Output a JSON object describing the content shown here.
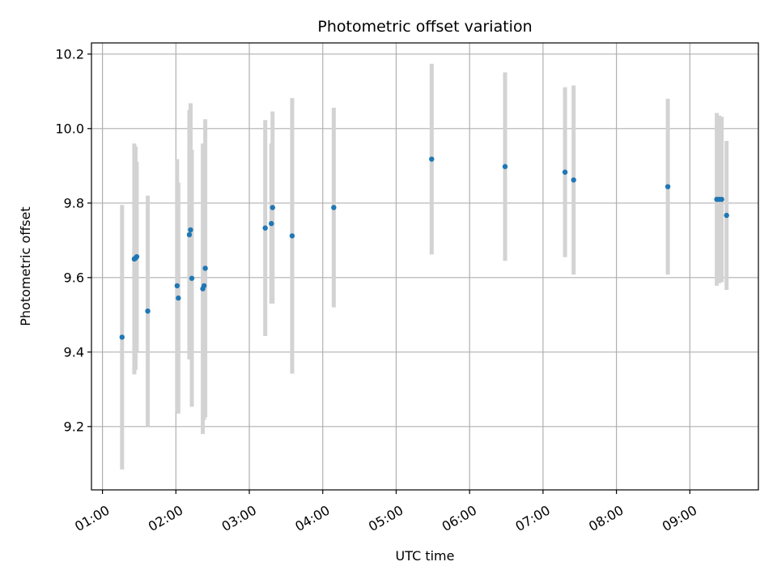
{
  "chart_data": {
    "type": "scatter",
    "title": "Photometric offset variation",
    "xlabel": "UTC time",
    "ylabel": "Photometric offset",
    "x_tick_labels": [
      "01:00",
      "02:00",
      "03:00",
      "04:00",
      "05:00",
      "06:00",
      "07:00",
      "08:00",
      "09:00"
    ],
    "y_tick_labels": [
      "9.2",
      "9.4",
      "9.6",
      "9.8",
      "10.0",
      "10.2"
    ],
    "x_ticks": [
      "01:00",
      "02:00",
      "03:00",
      "04:00",
      "05:00",
      "06:00",
      "07:00",
      "08:00",
      "09:00"
    ],
    "y_ticks": [
      9.2,
      9.4,
      9.6,
      9.8,
      10.0,
      10.2
    ],
    "xlim": [
      "00:51",
      "09:56"
    ],
    "ylim": [
      9.03,
      10.23
    ],
    "grid": true,
    "point_color": "#1f77b4",
    "errorbar_color": "#d3d3d3",
    "points": [
      {
        "x": "01:16",
        "y": 9.44,
        "err": 0.355
      },
      {
        "x": "01:26",
        "y": 9.65,
        "err": 0.31
      },
      {
        "x": "01:27",
        "y": 9.652,
        "err": 0.3
      },
      {
        "x": "01:28",
        "y": 9.656,
        "err": 0.255
      },
      {
        "x": "01:37",
        "y": 9.51,
        "err": 0.31
      },
      {
        "x": "02:01",
        "y": 9.578,
        "err": 0.34
      },
      {
        "x": "02:02",
        "y": 9.545,
        "err": 0.31
      },
      {
        "x": "02:11",
        "y": 9.715,
        "err": 0.335
      },
      {
        "x": "02:12",
        "y": 9.728,
        "err": 0.34
      },
      {
        "x": "02:13",
        "y": 9.598,
        "err": 0.345
      },
      {
        "x": "02:22",
        "y": 9.57,
        "err": 0.39
      },
      {
        "x": "02:23",
        "y": 9.578,
        "err": 0.36
      },
      {
        "x": "02:24",
        "y": 9.625,
        "err": 0.4
      },
      {
        "x": "03:13",
        "y": 9.733,
        "err": 0.29
      },
      {
        "x": "03:18",
        "y": 9.745,
        "err": 0.215
      },
      {
        "x": "03:19",
        "y": 9.788,
        "err": 0.258
      },
      {
        "x": "03:35",
        "y": 9.712,
        "err": 0.37
      },
      {
        "x": "04:09",
        "y": 9.788,
        "err": 0.268
      },
      {
        "x": "05:29",
        "y": 9.918,
        "err": 0.256
      },
      {
        "x": "06:29",
        "y": 9.898,
        "err": 0.253
      },
      {
        "x": "07:18",
        "y": 9.883,
        "err": 0.228
      },
      {
        "x": "07:25",
        "y": 9.862,
        "err": 0.254
      },
      {
        "x": "08:42",
        "y": 9.844,
        "err": 0.236
      },
      {
        "x": "09:22",
        "y": 9.81,
        "err": 0.232
      },
      {
        "x": "09:24",
        "y": 9.81,
        "err": 0.225
      },
      {
        "x": "09:26",
        "y": 9.81,
        "err": 0.222
      },
      {
        "x": "09:30",
        "y": 9.767,
        "err": 0.2
      }
    ]
  }
}
